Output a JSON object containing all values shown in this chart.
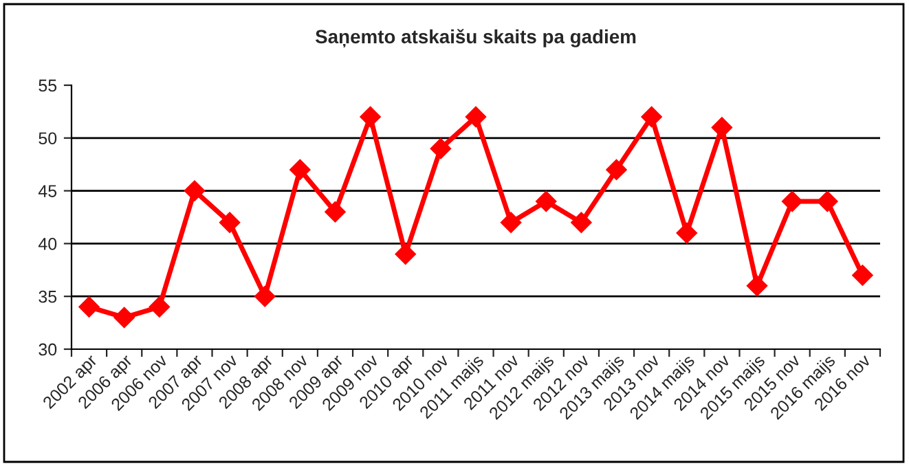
{
  "chart_data": {
    "type": "line",
    "title": "Saņemto atskaišu skaits pa gadiem",
    "categories": [
      "2002 apr",
      "2006 apr",
      "2006 nov",
      "2007 apr",
      "2007 nov",
      "2008 apr",
      "2008 nov",
      "2009 apr",
      "2009 nov",
      "2010 apr",
      "2010 nov",
      "2011 maijs",
      "2011 nov",
      "2012 maijs",
      "2012 nov",
      "2013 maijs",
      "2013 nov",
      "2014 maijs",
      "2014 nov",
      "2015 maijs",
      "2015 nov",
      "2016 maijs",
      "2016 nov"
    ],
    "series": [
      {
        "color": "#ff0000",
        "values": [
          34,
          33,
          34,
          45,
          42,
          35,
          47,
          43,
          52,
          39,
          49,
          52,
          42,
          44,
          42,
          47,
          52,
          41,
          51,
          36,
          44,
          44,
          37
        ]
      }
    ],
    "ylim": [
      30,
      55
    ],
    "yticks": [
      30,
      35,
      40,
      45,
      50,
      55
    ],
    "grid": "y",
    "legend": false,
    "marker": "diamond",
    "line_style": "solid"
  }
}
